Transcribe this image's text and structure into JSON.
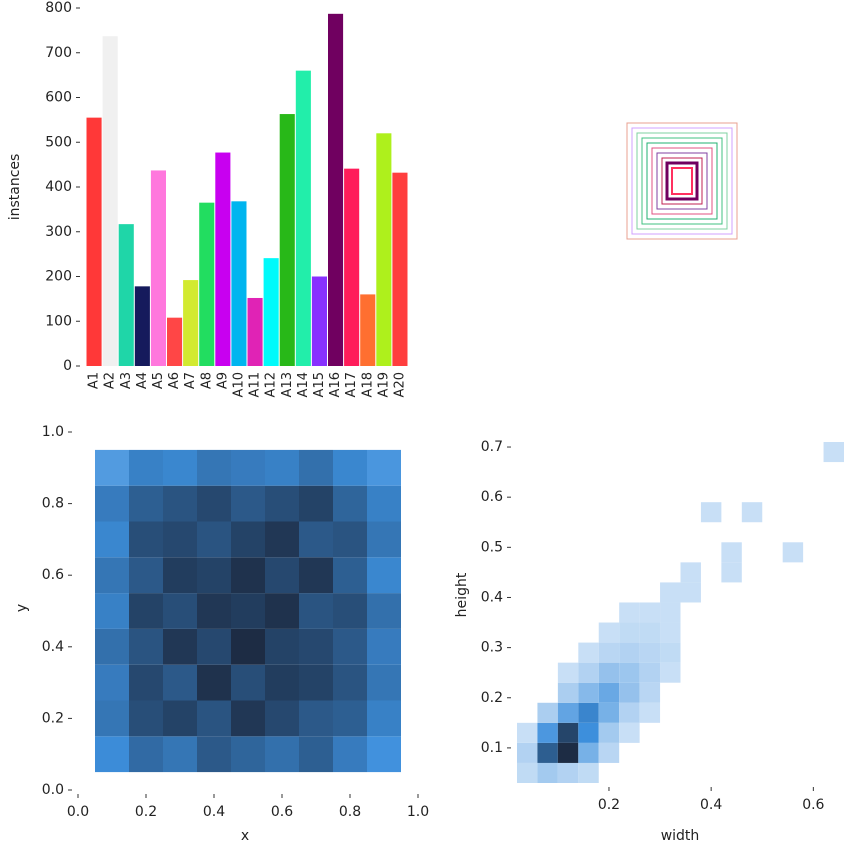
{
  "chart_data": [
    {
      "type": "bar",
      "ylabel": "instances",
      "categories": [
        "A1",
        "A2",
        "A3",
        "A4",
        "A5",
        "A6",
        "A7",
        "A8",
        "A9",
        "A10",
        "A11",
        "A12",
        "A13",
        "A14",
        "A15",
        "A16",
        "A17",
        "A18",
        "A19",
        "A20"
      ],
      "values": [
        555,
        737,
        317,
        178,
        437,
        108,
        192,
        365,
        477,
        368,
        152,
        241,
        563,
        660,
        200,
        787,
        441,
        160,
        520,
        432
      ],
      "colors": [
        "#ff3838",
        "#f0f0f0",
        "#1fd6a8",
        "#151a5c",
        "#ff77dd",
        "#ff4646",
        "#d2ea30",
        "#22dd60",
        "#c800f0",
        "#00b5ef",
        "#e023b5",
        "#00fafa",
        "#28b818",
        "#22eeaa",
        "#8830ff",
        "#700060",
        "#ff1c5a",
        "#ff6f30",
        "#aef01c",
        "#ff3e3e"
      ],
      "ylim": [
        0,
        800
      ],
      "yticks": [
        0,
        100,
        200,
        300,
        400,
        500,
        600,
        700,
        800
      ]
    },
    {
      "type": "hist2d",
      "xlabel": "x",
      "ylabel": "y",
      "xlim": [
        0,
        1
      ],
      "ylim": [
        0,
        1
      ],
      "xticks": [
        {
          "value": 0,
          "label": "0.0"
        },
        0.2,
        0.4,
        0.6,
        0.8,
        {
          "value": 1,
          "label": "1.0"
        }
      ],
      "yticks": [
        {
          "value": 0,
          "label": "0.0"
        },
        0.2,
        0.4,
        0.6,
        0.8,
        {
          "value": 1,
          "label": "1.0"
        }
      ],
      "cmap": [
        "#cfe3f7",
        "#3d8fdc",
        "#1d2c44"
      ],
      "xbins": [
        0.05,
        0.15,
        0.25,
        0.35,
        0.45,
        0.55,
        0.65,
        0.75,
        0.85,
        0.95
      ],
      "ybins": [
        0.05,
        0.15,
        0.25,
        0.35,
        0.45,
        0.55,
        0.65,
        0.75,
        0.85,
        0.95
      ],
      "counts": [
        [
          18,
          24,
          22,
          27,
          25,
          23,
          26,
          21,
          17
        ],
        [
          22,
          29,
          31,
          28,
          33,
          30,
          27,
          26,
          20
        ],
        [
          21,
          30,
          27,
          34,
          29,
          32,
          31,
          28,
          22
        ],
        [
          23,
          28,
          33,
          30,
          35,
          31,
          30,
          27,
          21
        ],
        [
          20,
          31,
          29,
          33,
          32,
          34,
          28,
          29,
          23
        ],
        [
          22,
          27,
          32,
          31,
          34,
          30,
          33,
          26,
          19
        ],
        [
          19,
          29,
          30,
          28,
          31,
          33,
          27,
          28,
          22
        ],
        [
          21,
          26,
          28,
          30,
          27,
          29,
          31,
          25,
          20
        ],
        [
          15,
          20,
          19,
          22,
          21,
          20,
          23,
          19,
          16
        ]
      ]
    },
    {
      "type": "hist2d",
      "xlabel": "width",
      "ylabel": "height",
      "xlim": [
        0.02,
        0.66
      ],
      "ylim": [
        0.03,
        0.72
      ],
      "xticks": [
        0.2,
        0.4,
        0.6
      ],
      "yticks": [
        0.1,
        0.2,
        0.3,
        0.4,
        0.5,
        0.6,
        0.7
      ],
      "cmap": [
        "#cfe3f7",
        "#3d8fdc",
        "#1d2c44"
      ],
      "xbins": [
        0.02,
        0.06,
        0.1,
        0.14,
        0.18,
        0.22,
        0.26,
        0.3,
        0.34,
        0.38,
        0.42,
        0.46,
        0.5,
        0.54,
        0.58,
        0.62,
        0.66
      ],
      "ybins": [
        0.03,
        0.07,
        0.11,
        0.15,
        0.19,
        0.23,
        0.27,
        0.31,
        0.35,
        0.39,
        0.43,
        0.47,
        0.51,
        0.55,
        0.59,
        0.63,
        0.67,
        0.71
      ],
      "counts": [
        [
          2,
          6,
          4,
          2,
          0,
          0,
          0,
          0,
          0,
          0,
          0,
          0,
          0,
          0,
          0,
          0
        ],
        [
          4,
          30,
          40,
          12,
          3,
          0,
          0,
          0,
          0,
          0,
          0,
          0,
          0,
          0,
          0,
          0
        ],
        [
          1,
          18,
          35,
          20,
          6,
          1,
          0,
          0,
          0,
          0,
          0,
          0,
          0,
          0,
          0,
          0
        ],
        [
          0,
          5,
          15,
          22,
          12,
          4,
          1,
          0,
          0,
          0,
          0,
          0,
          0,
          0,
          0,
          0
        ],
        [
          0,
          0,
          5,
          10,
          14,
          8,
          3,
          0,
          0,
          0,
          0,
          0,
          0,
          0,
          0,
          0
        ],
        [
          0,
          0,
          1,
          4,
          8,
          7,
          4,
          1,
          0,
          0,
          0,
          0,
          0,
          0,
          0,
          0
        ],
        [
          0,
          0,
          0,
          1,
          3,
          4,
          3,
          2,
          0,
          0,
          0,
          0,
          0,
          0,
          0,
          0
        ],
        [
          0,
          0,
          0,
          0,
          1,
          2,
          2,
          1,
          0,
          0,
          0,
          0,
          0,
          0,
          0,
          0
        ],
        [
          0,
          0,
          0,
          0,
          0,
          1,
          1,
          1,
          0,
          0,
          0,
          0,
          0,
          0,
          0,
          0
        ],
        [
          0,
          0,
          0,
          0,
          0,
          0,
          0,
          1,
          1,
          0,
          0,
          0,
          0,
          0,
          0,
          0
        ],
        [
          0,
          0,
          0,
          0,
          0,
          0,
          0,
          0,
          1,
          0,
          1,
          0,
          0,
          0,
          0,
          0
        ],
        [
          0,
          0,
          0,
          0,
          0,
          0,
          0,
          0,
          0,
          0,
          1,
          0,
          0,
          1,
          0,
          0
        ],
        [
          0,
          0,
          0,
          0,
          0,
          0,
          0,
          0,
          0,
          0,
          0,
          0,
          0,
          0,
          0,
          0
        ],
        [
          0,
          0,
          0,
          0,
          0,
          0,
          0,
          0,
          0,
          1,
          0,
          1,
          0,
          0,
          0,
          0
        ],
        [
          0,
          0,
          0,
          0,
          0,
          0,
          0,
          0,
          0,
          0,
          0,
          0,
          0,
          0,
          0,
          0
        ],
        [
          0,
          0,
          0,
          0,
          0,
          0,
          0,
          0,
          0,
          0,
          0,
          0,
          0,
          0,
          0,
          0
        ],
        [
          0,
          0,
          0,
          0,
          0,
          0,
          0,
          0,
          0,
          0,
          0,
          0,
          0,
          0,
          0,
          1
        ]
      ]
    }
  ]
}
